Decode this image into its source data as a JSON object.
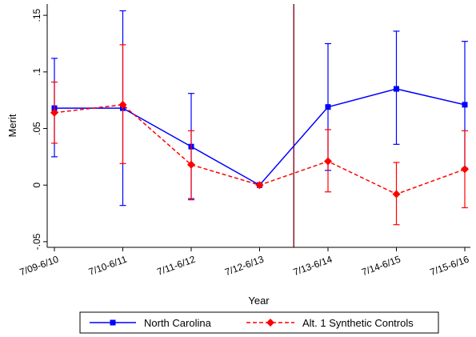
{
  "chart_data": {
    "type": "line",
    "xlabel": "Year",
    "ylabel": "Merit",
    "categories": [
      "7/09-6/10",
      "7/10-6/11",
      "7/11-6/12",
      "7/12-6/13",
      "7/13-6/14",
      "7/14-6/15",
      "7/15-6/16"
    ],
    "ylim": [
      -0.055,
      0.16
    ],
    "yticks": [
      -0.05,
      0,
      0.05,
      0.1,
      0.15
    ],
    "ytick_labels": [
      "-.05",
      "0",
      ".05",
      ".1",
      ".15"
    ],
    "intervention_after_category": "7/12-6/13",
    "intervention_color": "#8b1a2a",
    "grid": false,
    "legend_position": "bottom",
    "series": [
      {
        "name": "North Carolina",
        "color": "#0000ff",
        "line_style": "solid",
        "marker": "square",
        "values": [
          0.068,
          0.068,
          0.034,
          0.0,
          0.069,
          0.085,
          0.071
        ],
        "ci_low": [
          0.025,
          -0.018,
          -0.012,
          0.0,
          0.013,
          0.036,
          0.015
        ],
        "ci_high": [
          0.112,
          0.154,
          0.081,
          0.0,
          0.125,
          0.136,
          0.127
        ]
      },
      {
        "name": "Alt. 1 Synthetic Controls",
        "color": "#ff0000",
        "line_style": "dashed",
        "marker": "diamond",
        "values": [
          0.064,
          0.071,
          0.018,
          0.0,
          0.021,
          -0.008,
          0.014
        ],
        "ci_low": [
          0.037,
          0.019,
          -0.013,
          0.0,
          -0.006,
          -0.035,
          -0.02
        ],
        "ci_high": [
          0.091,
          0.124,
          0.048,
          0.0,
          0.049,
          0.02,
          0.048
        ]
      }
    ]
  }
}
